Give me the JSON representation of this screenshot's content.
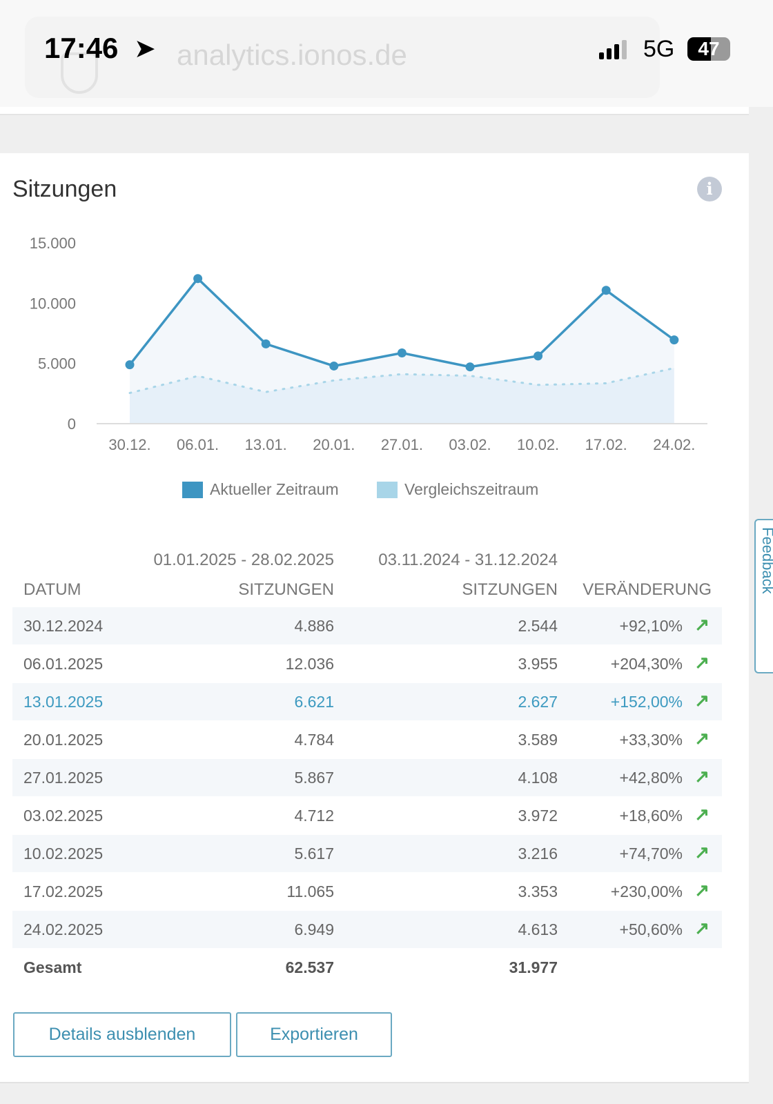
{
  "status_bar": {
    "time": "17:46",
    "network": "5G",
    "battery": "47",
    "url": "analytics.ionos.de",
    "location_icon": "location-arrow-icon"
  },
  "card": {
    "title": "Sitzungen",
    "info_icon": "info-icon"
  },
  "chart_data": {
    "type": "area",
    "categories": [
      "30.12.",
      "06.01.",
      "13.01.",
      "20.01.",
      "27.01.",
      "03.02.",
      "10.02.",
      "17.02.",
      "24.02."
    ],
    "yticks": [
      "0",
      "5.000",
      "10.000",
      "15.000"
    ],
    "ylim": [
      0,
      15000
    ],
    "grid": false,
    "legend": "bottom",
    "series": [
      {
        "name": "Aktueller Zeitraum",
        "values": [
          4886,
          12036,
          6621,
          4784,
          5867,
          4712,
          5617,
          11065,
          6949
        ],
        "color": "#3d95c2",
        "style": "solid-with-markers"
      },
      {
        "name": "Vergleichszeitraum",
        "values": [
          2544,
          3955,
          2627,
          3589,
          4108,
          3972,
          3216,
          3353,
          4613
        ],
        "color": "#a8d5e8",
        "style": "dotted"
      }
    ]
  },
  "table": {
    "range_current": "01.01.2025 - 28.02.2025",
    "range_compare": "03.11.2024 - 31.12.2024",
    "headers": [
      "DATUM",
      "SITZUNGEN",
      "SITZUNGEN",
      "VERÄNDERUNG"
    ],
    "rows": [
      [
        "30.12.2024",
        "4.886",
        "2.544",
        "+92,10%"
      ],
      [
        "06.01.2025",
        "12.036",
        "3.955",
        "+204,30%"
      ],
      [
        "13.01.2025",
        "6.621",
        "2.627",
        "+152,00%"
      ],
      [
        "20.01.2025",
        "4.784",
        "3.589",
        "+33,30%"
      ],
      [
        "27.01.2025",
        "5.867",
        "4.108",
        "+42,80%"
      ],
      [
        "03.02.2025",
        "4.712",
        "3.972",
        "+18,60%"
      ],
      [
        "10.02.2025",
        "5.617",
        "3.216",
        "+74,70%"
      ],
      [
        "17.02.2025",
        "11.065",
        "3.353",
        "+230,00%"
      ],
      [
        "24.02.2025",
        "6.949",
        "4.613",
        "+50,60%"
      ]
    ],
    "highlighted_row": 2,
    "trend_icon": "arrow-up-right-icon",
    "total": [
      "Gesamt",
      "62.537",
      "31.977"
    ]
  },
  "buttons": {
    "hide_details": "Details ausblenden",
    "export": "Exportieren"
  },
  "feedback": "Feedback"
}
